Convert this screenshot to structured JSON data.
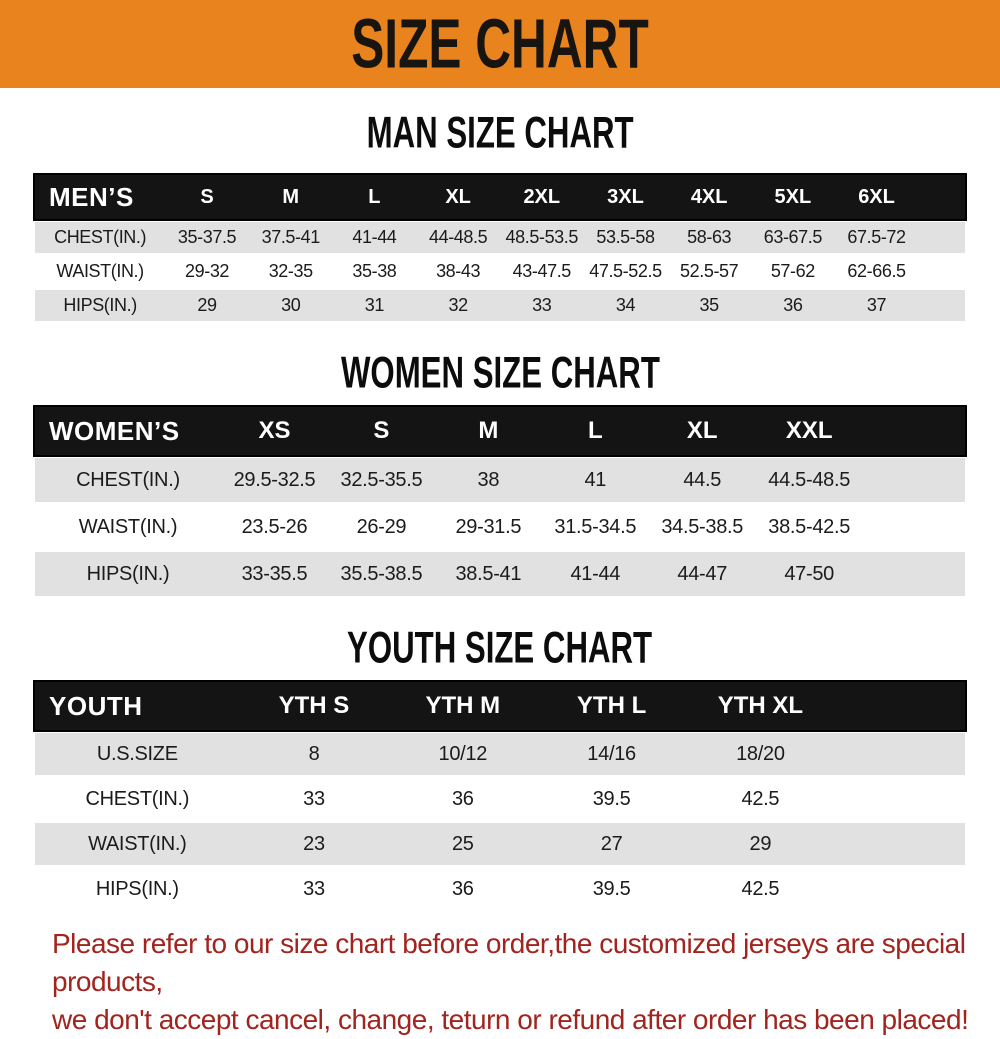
{
  "banner": {
    "title": "SIZE CHART",
    "bg_color": "#e8831d",
    "text_color": "#181410"
  },
  "sections": {
    "men": {
      "heading": "MAN SIZE CHART",
      "table": {
        "header": [
          "MEN’S",
          "S",
          "M",
          "L",
          "XL",
          "2XL",
          "3XL",
          "4XL",
          "5XL",
          "6XL"
        ],
        "rows": [
          [
            "CHEST(IN.)",
            "35-37.5",
            "37.5-41",
            "41-44",
            "44-48.5",
            "48.5-53.5",
            "53.5-58",
            "58-63",
            "63-67.5",
            "67.5-72"
          ],
          [
            "WAIST(IN.)",
            "29-32",
            "32-35",
            "35-38",
            "38-43",
            "43-47.5",
            "47.5-52.5",
            "52.5-57",
            "57-62",
            "62-66.5"
          ],
          [
            "HIPS(IN.)",
            "29",
            "30",
            "31",
            "32",
            "33",
            "34",
            "35",
            "36",
            "37"
          ]
        ]
      }
    },
    "women": {
      "heading": "WOMEN SIZE CHART",
      "table": {
        "header": [
          "WOMEN’S",
          "XS",
          "S",
          "M",
          "L",
          "XL",
          "XXL"
        ],
        "rows": [
          [
            "CHEST(IN.)",
            "29.5-32.5",
            "32.5-35.5",
            "38",
            "41",
            "44.5",
            "44.5-48.5"
          ],
          [
            "WAIST(IN.)",
            "23.5-26",
            "26-29",
            "29-31.5",
            "31.5-34.5",
            "34.5-38.5",
            "38.5-42.5"
          ],
          [
            "HIPS(IN.)",
            "33-35.5",
            "35.5-38.5",
            "38.5-41",
            "41-44",
            "44-47",
            "47-50"
          ]
        ]
      }
    },
    "youth": {
      "heading": "YOUTH SIZE CHART",
      "table": {
        "header": [
          "YOUTH",
          "YTH S",
          "YTH M",
          "YTH L",
          "YTH XL"
        ],
        "rows": [
          [
            "U.S.SIZE",
            "8",
            "10/12",
            "14/16",
            "18/20"
          ],
          [
            "CHEST(IN.)",
            "33",
            "36",
            "39.5",
            "42.5"
          ],
          [
            "WAIST(IN.)",
            "23",
            "25",
            "27",
            "29"
          ],
          [
            "HIPS(IN.)",
            "33",
            "36",
            "39.5",
            "42.5"
          ]
        ]
      }
    }
  },
  "footer_note": {
    "lines": [
      "Please refer to our size chart before order,the customized jerseys are special products,",
      "we don't accept cancel, change, teturn or refund after order has been placed!"
    ],
    "color": "#a1241f"
  },
  "colors": {
    "banner_bg": "#e8831d",
    "table_header_bar": "#141414",
    "row_alternate": "#e2e1e1",
    "footer_text": "#a1241f"
  }
}
